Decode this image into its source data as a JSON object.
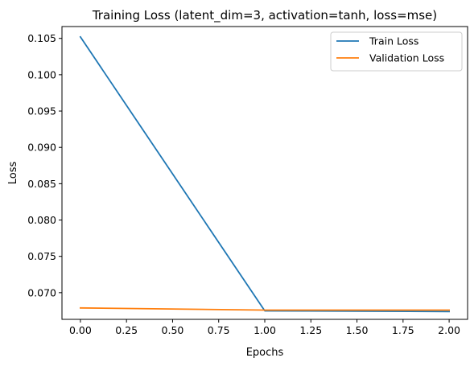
{
  "chart_data": {
    "type": "line",
    "title": "Training Loss (latent_dim=3, activation=tanh, loss=mse)",
    "xlabel": "Epochs",
    "ylabel": "Loss",
    "x": [
      0,
      1,
      2
    ],
    "xlim": [
      -0.1,
      2.1
    ],
    "ylim": [
      0.06633,
      0.10663
    ],
    "xticks": [
      0.0,
      0.25,
      0.5,
      0.75,
      1.0,
      1.25,
      1.5,
      1.75,
      2.0
    ],
    "xtick_labels": [
      "0.00",
      "0.25",
      "0.50",
      "0.75",
      "1.00",
      "1.25",
      "1.50",
      "1.75",
      "2.00"
    ],
    "yticks": [
      0.07,
      0.075,
      0.08,
      0.085,
      0.09,
      0.095,
      0.1,
      0.105
    ],
    "ytick_labels": [
      "0.070",
      "0.075",
      "0.080",
      "0.085",
      "0.090",
      "0.095",
      "0.100",
      "0.105"
    ],
    "grid": false,
    "legend_position": "top-right",
    "series": [
      {
        "name": "Train Loss",
        "color": "#1f77b4",
        "values": [
          0.1052,
          0.0675,
          0.0674
        ]
      },
      {
        "name": "Validation Loss",
        "color": "#ff7f0e",
        "values": [
          0.0679,
          0.0676,
          0.0676
        ]
      }
    ]
  }
}
